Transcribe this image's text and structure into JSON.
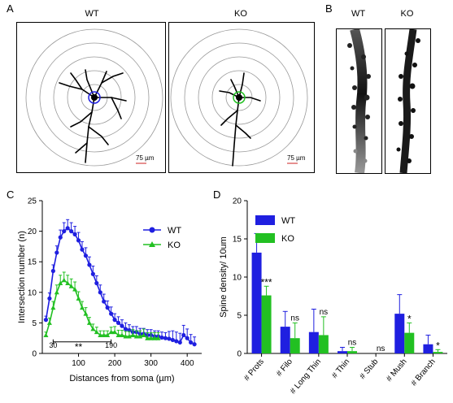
{
  "panels": {
    "a": {
      "letter": "A",
      "left_label": "WT",
      "right_label": "KO",
      "scale_bar": "75 µm"
    },
    "b": {
      "letter": "B",
      "left_label": "WT",
      "right_label": "KO"
    },
    "c": {
      "letter": "C"
    },
    "d": {
      "letter": "D"
    }
  },
  "colors": {
    "wt": "#1f1fe0",
    "ko": "#22c022",
    "scale_bar": "#cc2222",
    "rings": "#999999"
  },
  "chart_data": [
    {
      "panel": "C",
      "type": "line",
      "xlabel": "Distances from soma (µm)",
      "ylabel": "Intersection number (n)",
      "xlim": [
        0,
        440
      ],
      "ylim": [
        0,
        25
      ],
      "xticks": [
        100,
        200,
        300,
        400
      ],
      "yticks": [
        0,
        5,
        10,
        15,
        20,
        25
      ],
      "legend_position": "top-right",
      "series": [
        {
          "name": "WT",
          "color": "#1f1fe0",
          "marker": "circle",
          "x": [
            10,
            20,
            30,
            40,
            50,
            60,
            70,
            80,
            90,
            100,
            110,
            120,
            130,
            140,
            150,
            160,
            170,
            180,
            190,
            200,
            210,
            220,
            230,
            240,
            250,
            260,
            270,
            280,
            290,
            300,
            310,
            320,
            330,
            340,
            350,
            360,
            370,
            380,
            390,
            400,
            410,
            420
          ],
          "y": [
            5.5,
            9,
            13.5,
            16.5,
            19,
            20,
            20.5,
            20,
            19.5,
            18.5,
            17,
            16,
            14.5,
            13,
            11.5,
            10,
            8.5,
            7.5,
            6.5,
            5.5,
            5,
            4.5,
            4,
            3.8,
            3.5,
            3.5,
            3.2,
            3.2,
            3,
            3,
            2.8,
            2.8,
            2.6,
            2.5,
            2.4,
            2.2,
            2,
            1.8,
            3,
            2.5,
            1.8,
            1.5
          ],
          "err": [
            0.6,
            0.9,
            1.0,
            1.1,
            1.2,
            1.4,
            1.4,
            1.4,
            1.3,
            1.3,
            1.3,
            1.3,
            1.3,
            1.3,
            1.2,
            1.2,
            1.2,
            1.1,
            1.1,
            1.0,
            1.0,
            1.0,
            1.0,
            0.9,
            0.9,
            0.9,
            0.9,
            0.9,
            0.9,
            0.9,
            0.9,
            0.9,
            0.9,
            0.9,
            1.2,
            1.5,
            1.5,
            1.5,
            1.6,
            1.5,
            1.3,
            1.2
          ]
        },
        {
          "name": "KO",
          "color": "#22c022",
          "marker": "triangle",
          "x": [
            10,
            20,
            30,
            40,
            50,
            60,
            70,
            80,
            90,
            100,
            110,
            120,
            130,
            140,
            150,
            160,
            170,
            180,
            190,
            200,
            210,
            220,
            230,
            240,
            250,
            260,
            270,
            280,
            290,
            300,
            310,
            320
          ],
          "y": [
            3,
            5,
            7.5,
            10,
            11.5,
            12,
            11.5,
            11,
            10.5,
            9,
            7.5,
            6.5,
            5,
            4,
            3.5,
            3,
            3,
            3,
            3.5,
            3.5,
            3,
            3,
            2.8,
            2.8,
            3,
            2.8,
            2.8,
            3,
            2.5,
            2.5,
            2.5,
            2.5
          ],
          "err": [
            0.5,
            0.8,
            1.0,
            1.2,
            1.3,
            1.3,
            1.3,
            1.2,
            1.2,
            1.1,
            1.0,
            1.0,
            0.9,
            0.8,
            0.8,
            0.7,
            0.7,
            0.7,
            0.8,
            0.9,
            0.8,
            0.8,
            0.8,
            0.8,
            0.9,
            0.9,
            0.9,
            1.0,
            0.9,
            0.9,
            0.9,
            0.9
          ]
        }
      ],
      "annotations": [
        {
          "text": "30",
          "x": 30,
          "y": 0.9
        },
        {
          "text": "**",
          "x": 100,
          "y": 0.9
        },
        {
          "text": "190",
          "x": 190,
          "y": 0.9
        }
      ],
      "bracket": {
        "x_start": 30,
        "x_end": 190
      }
    },
    {
      "panel": "D",
      "type": "bar",
      "ylabel": "Spine density/ 10um",
      "ylim": [
        0,
        20
      ],
      "yticks": [
        0,
        5,
        10,
        15,
        20
      ],
      "legend_position": "top-left",
      "categories": [
        "# Prots",
        "# Filo",
        "# Long Thin",
        "# Thin",
        "# Stub",
        "# Mush",
        "# Branch"
      ],
      "series": [
        {
          "name": "WT",
          "color": "#1f1fe0",
          "values": [
            13.2,
            3.5,
            2.8,
            0.3,
            0,
            5.2,
            1.2
          ],
          "err": [
            2.5,
            2.0,
            3.0,
            0.5,
            0,
            2.5,
            1.2
          ]
        },
        {
          "name": "KO",
          "color": "#22c022",
          "values": [
            7.6,
            2.0,
            2.4,
            0.3,
            0,
            2.7,
            0.2
          ],
          "err": [
            1.2,
            2.0,
            2.4,
            0.5,
            0,
            1.3,
            0.3
          ]
        }
      ],
      "significance": [
        "***",
        "ns",
        "ns",
        "ns",
        "ns",
        "*",
        "*"
      ]
    }
  ]
}
